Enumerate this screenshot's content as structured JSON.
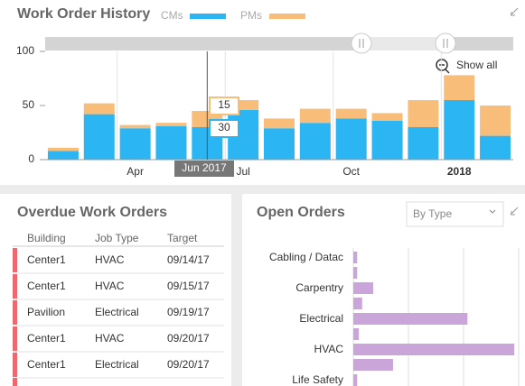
{
  "chart_data": [
    {
      "type": "stacked-bar",
      "title": "Work Order History",
      "categories": [
        null,
        null,
        "Apr",
        null,
        null,
        "Jul",
        null,
        null,
        "Oct",
        null,
        null,
        "2018",
        null
      ],
      "series": [
        {
          "name": "CMs",
          "color": "#2bb5f2",
          "values": [
            8,
            42,
            29,
            31,
            30,
            46,
            29,
            34,
            38,
            36,
            30,
            55,
            22
          ]
        },
        {
          "name": "PMs",
          "color": "#f9bd7a",
          "values": [
            3,
            10,
            3,
            3,
            15,
            9,
            9,
            13,
            9,
            7,
            25,
            23,
            28
          ]
        }
      ],
      "ylim": [
        0,
        100
      ],
      "yticks": [
        0,
        50,
        100
      ],
      "grid": true,
      "hover_label": "Jun 2017",
      "zoom_label": "Show all"
    },
    {
      "type": "hbar",
      "title": "Open Orders",
      "filter": "By Type",
      "categories": [
        "Cabling / Datac",
        null,
        "Carpentry",
        null,
        "Electrical",
        null,
        "HVAC",
        null,
        "Life Safety"
      ],
      "values": [
        0.7,
        0.7,
        3.6,
        1.6,
        20.7,
        1,
        29.2,
        7.2,
        0.7
      ],
      "color": "#c9a5da",
      "xlim": [
        0,
        30
      ],
      "xgrid": [
        10,
        20,
        30
      ]
    }
  ],
  "overdue": {
    "title": "Overdue Work Orders",
    "columns": [
      "Building",
      "Job Type",
      "Target"
    ],
    "rows": [
      [
        "Center1",
        "HVAC",
        "09/14/17"
      ],
      [
        "Center1",
        "HVAC",
        "09/15/17"
      ],
      [
        "Pavilion",
        "Electrical",
        "09/19/17"
      ],
      [
        "Center1",
        "HVAC",
        "09/20/17"
      ],
      [
        "Center1",
        "Electrical",
        "09/20/17"
      ]
    ]
  }
}
